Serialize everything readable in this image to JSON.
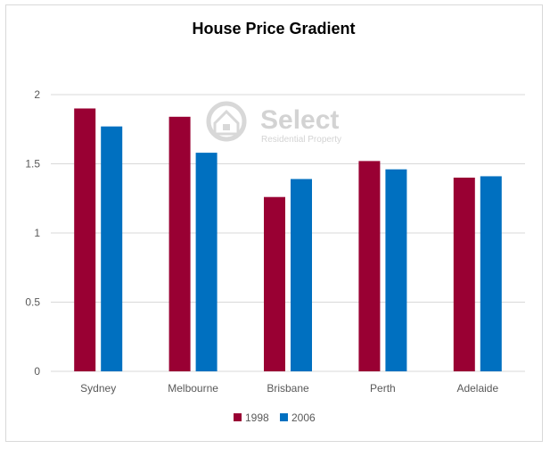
{
  "chart_data": {
    "type": "bar",
    "title": "House Price Gradient",
    "xlabel": "",
    "ylabel": "",
    "categories": [
      "Sydney",
      "Melbourne",
      "Brisbane",
      "Perth",
      "Adelaide"
    ],
    "series": [
      {
        "name": "1998",
        "color": "#990033",
        "values": [
          1.9,
          1.84,
          1.26,
          1.52,
          1.4
        ]
      },
      {
        "name": "2006",
        "color": "#0070c0",
        "values": [
          1.77,
          1.58,
          1.39,
          1.46,
          1.41
        ]
      }
    ],
    "ylim": [
      0,
      2
    ],
    "yticks": [
      "0",
      "0.5",
      "1",
      "1.5",
      "2"
    ],
    "grid": true,
    "legend_position": "bottom"
  },
  "watermark": {
    "brand": "Select",
    "tagline": "Residential Property"
  }
}
